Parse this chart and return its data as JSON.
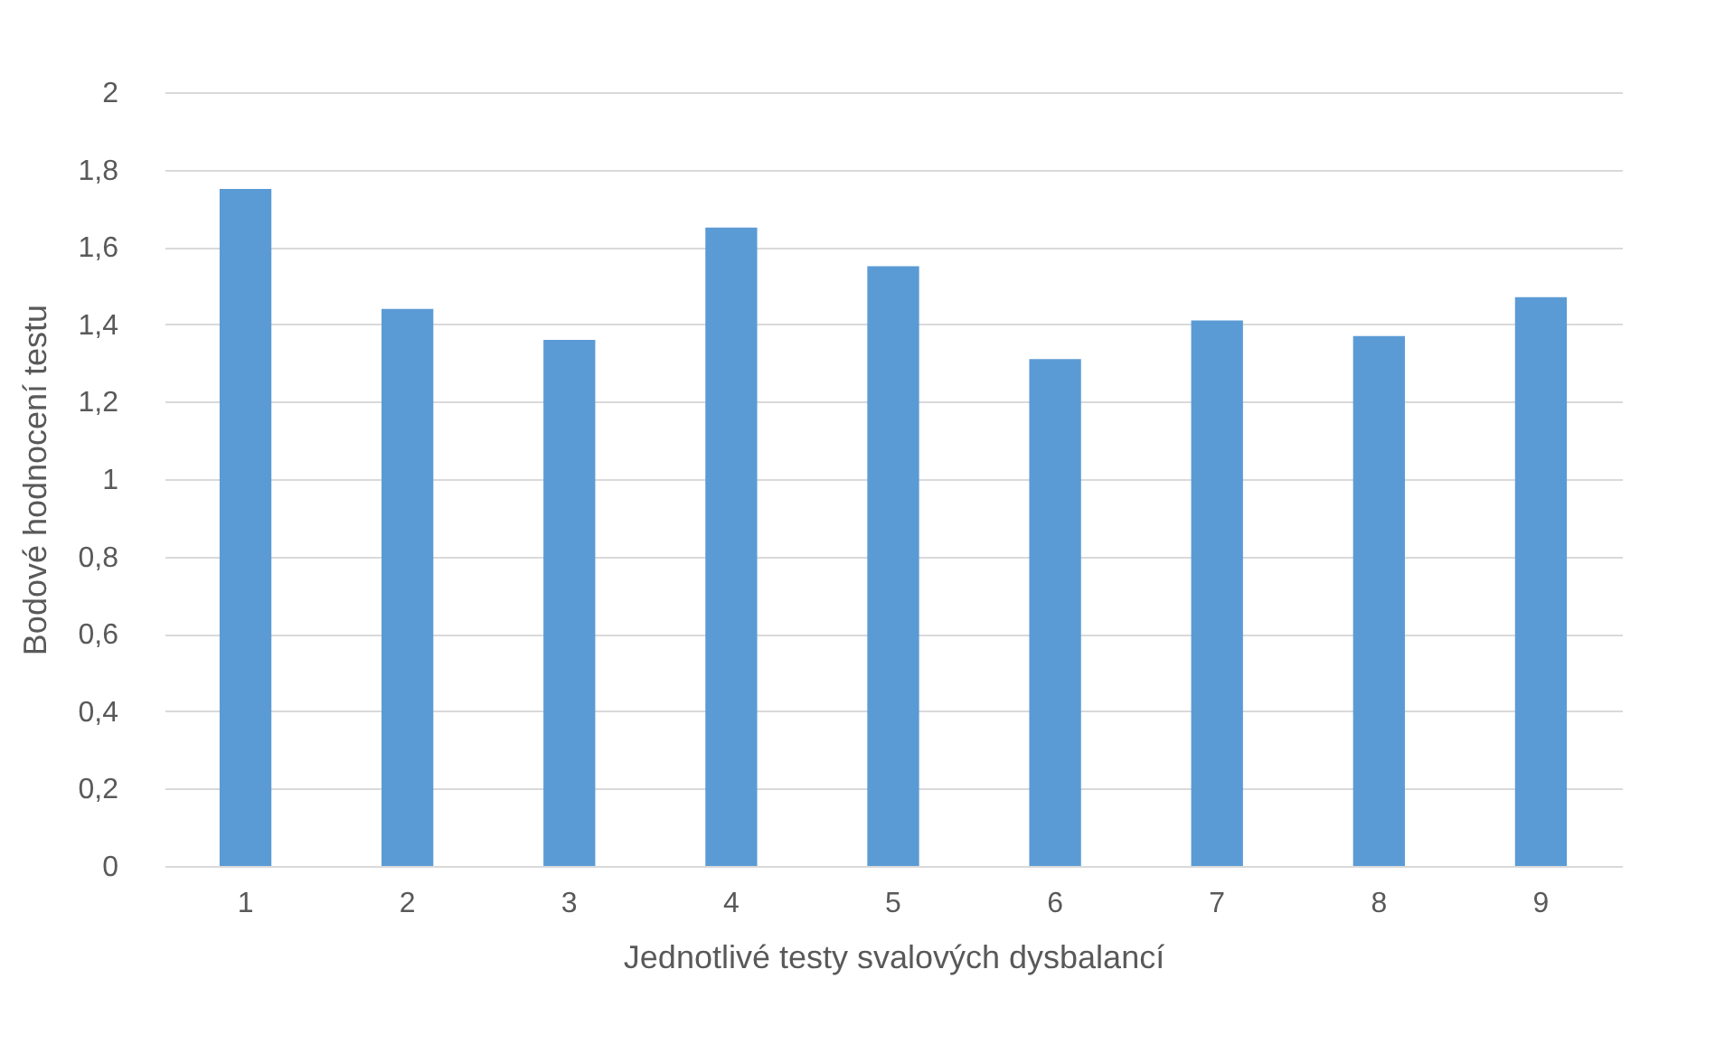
{
  "chart_data": {
    "type": "bar",
    "xlabel": "Jednotlivé testy svalových dysbalancí",
    "ylabel": "Bodové hodnocení testu",
    "categories": [
      "1",
      "2",
      "3",
      "4",
      "5",
      "6",
      "7",
      "8",
      "9"
    ],
    "values": [
      1.75,
      1.44,
      1.36,
      1.65,
      1.55,
      1.31,
      1.41,
      1.37,
      1.47
    ],
    "color": "#5b9bd5",
    "ylim": [
      0,
      2
    ],
    "yticks": [
      0,
      {
        "value": 0.2,
        "label": "0,2"
      },
      {
        "value": 0.4,
        "label": "0,4"
      },
      {
        "value": 0.6,
        "label": "0,6"
      },
      {
        "value": 0.8,
        "label": "0,8"
      },
      1,
      {
        "value": 1.2,
        "label": "1,2"
      },
      {
        "value": 1.4,
        "label": "1,4"
      },
      {
        "value": 1.6,
        "label": "1,6"
      },
      {
        "value": 1.8,
        "label": "1,8"
      },
      2
    ],
    "grid": "y"
  }
}
